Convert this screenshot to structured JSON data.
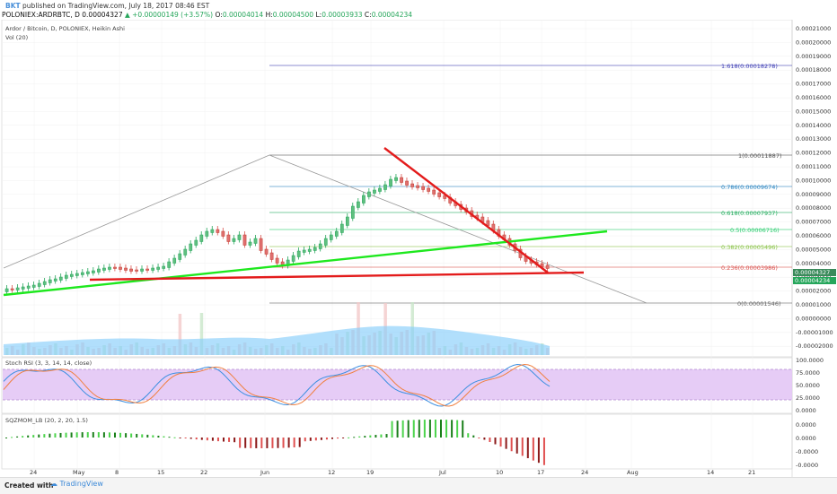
{
  "header": {
    "author": "BKT",
    "published": "published on TradingView.com, July 18, 2017 08:46 EST",
    "symbol_line": "POLONIEX:ARDRBTC, D",
    "last_price": "0.00004327",
    "change": "▲ +0.00000149 (+3.57%)",
    "o_label": "O:",
    "o_val": "0.00004014",
    "h_label": "H:",
    "h_val": "0.00004500",
    "l_label": "L:",
    "l_val": "0.00003933",
    "c_label": "C:",
    "c_val": "0.00004234"
  },
  "main_pane": {
    "title": "Ardor / Bitcoin, D, POLONIEX, Heikin Ashi",
    "volume_label": "Vol (20)",
    "price_axis": [
      "0.00021000",
      "0.00020000",
      "0.00019000",
      "0.00018000",
      "0.00017000",
      "0.00016000",
      "0.00015000",
      "0.00014000",
      "0.00013000",
      "0.00012000",
      "0.00011000",
      "0.00010000",
      "0.00009000",
      "0.00008000",
      "0.00007000",
      "0.00006000",
      "0.00005000",
      "0.00004000",
      "0.00003000",
      "0.00002000",
      "0.00001000",
      "0.00000000",
      "-0.00001000",
      "-0.00002000"
    ],
    "price_badge_1": "0.00004327",
    "price_badge_2": "0.00004234",
    "fib_levels": [
      {
        "label": "1.618(0.00018278)",
        "color": "#3f3fb5"
      },
      {
        "label": "1(0.00011887)",
        "color": "#555555"
      },
      {
        "label": "0.786(0.00009674)",
        "color": "#2e86c1"
      },
      {
        "label": "0.618(0.00007937)",
        "color": "#27ae60"
      },
      {
        "label": "0.5(0.00006716)",
        "color": "#2ecc71"
      },
      {
        "label": "0.382(0.00005496)",
        "color": "#8bc34a"
      },
      {
        "label": "0.236(0.00003986)",
        "color": "#d9534f"
      },
      {
        "label": "0(0.00001546)",
        "color": "#666666"
      }
    ]
  },
  "stoch_pane": {
    "title": "Stoch RSI (3, 3, 14, 14, close)",
    "axis": [
      "100.0000",
      "75.0000",
      "50.0000",
      "25.0000",
      "0.0000"
    ]
  },
  "sqz_pane": {
    "title": "SQZMOM_LB (20, 2, 20, 1.5)",
    "axis": [
      "0.0000",
      "0.0000",
      "-0.0000",
      "-0.0000"
    ]
  },
  "time_axis": [
    "24",
    "May",
    "8",
    "15",
    "22",
    "Jun",
    "12",
    "19",
    "Jul",
    "10",
    "17",
    "24",
    "Aug",
    "14",
    "21"
  ],
  "footer": {
    "created_with": "Created with",
    "brand": "TradingView"
  },
  "colors": {
    "up": "#26a65b",
    "down": "#d9534f",
    "trend_green": "#1ee81e",
    "trend_red": "#e31b1b",
    "volume": "#87cefa",
    "stoch_band": "#e3c6f5"
  }
}
